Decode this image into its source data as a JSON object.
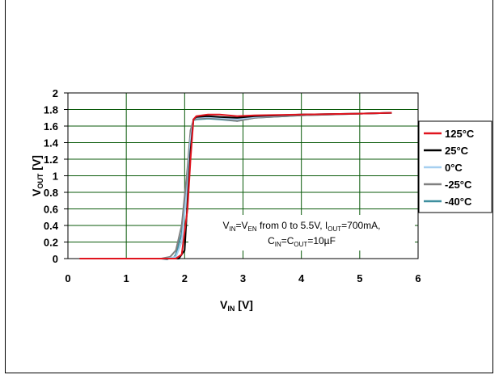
{
  "chart_data": {
    "type": "line",
    "xlabel": {
      "main": "V",
      "sub": "IN",
      "rest": " [V]"
    },
    "ylabel": {
      "main": "V",
      "sub": "OUT",
      "rest": " [V]"
    },
    "xlim": [
      0,
      6
    ],
    "ylim": [
      0,
      2
    ],
    "xticks": [
      "0",
      "1",
      "2",
      "3",
      "4",
      "5",
      "6"
    ],
    "yticks": [
      "0",
      "0.2",
      "0.4",
      "0.6",
      "0.8",
      "1",
      "1.2",
      "1.4",
      "1.6",
      "1.8",
      "2"
    ],
    "grid": true,
    "legend_position": "right",
    "annotation": {
      "line1": [
        {
          "t": "V"
        },
        {
          "t": "IN",
          "sub": true
        },
        {
          "t": "=V"
        },
        {
          "t": "EN",
          "sub": true
        },
        {
          "t": " from 0 to 5.5V, I"
        },
        {
          "t": "OUT",
          "sub": true
        },
        {
          "t": "=700mA,"
        }
      ],
      "line2": [
        {
          "t": "C"
        },
        {
          "t": "IN",
          "sub": true
        },
        {
          "t": "=C"
        },
        {
          "t": "OUT",
          "sub": true
        },
        {
          "t": "=10µF"
        }
      ]
    },
    "series": [
      {
        "name": "125°C",
        "color": "#e0141e",
        "x": [
          0.2,
          1.7,
          1.85,
          1.95,
          2.05,
          2.1,
          2.15,
          2.2,
          2.4,
          2.6,
          2.9,
          3.2,
          4.0,
          5.0,
          5.55
        ],
        "y": [
          0,
          0,
          0,
          0.05,
          0.6,
          1.2,
          1.68,
          1.72,
          1.74,
          1.74,
          1.72,
          1.73,
          1.74,
          1.75,
          1.76
        ]
      },
      {
        "name": "25°C",
        "color": "#000000",
        "x": [
          0.2,
          1.75,
          1.9,
          2.0,
          2.05,
          2.1,
          2.15,
          2.2,
          2.4,
          2.6,
          2.9,
          3.2,
          4.0,
          5.0,
          5.55
        ],
        "y": [
          0,
          0,
          0,
          0.1,
          0.7,
          1.3,
          1.68,
          1.71,
          1.72,
          1.71,
          1.7,
          1.72,
          1.74,
          1.75,
          1.76
        ]
      },
      {
        "name": "0°C",
        "color": "#a6cff0",
        "x": [
          0.2,
          1.7,
          1.85,
          1.95,
          2.05,
          2.1,
          2.15,
          2.2,
          2.4,
          2.6,
          2.9,
          3.2,
          4.0,
          5.0,
          5.55
        ],
        "y": [
          0,
          0,
          0.02,
          0.2,
          0.9,
          1.45,
          1.68,
          1.7,
          1.71,
          1.7,
          1.68,
          1.71,
          1.74,
          1.75,
          1.76
        ]
      },
      {
        "name": "-25°C",
        "color": "#808080",
        "x": [
          0.2,
          1.6,
          1.75,
          1.85,
          1.95,
          2.05,
          2.1,
          2.15,
          2.2,
          2.4,
          2.6,
          2.9,
          3.2,
          4.0,
          5.0,
          5.55
        ],
        "y": [
          0,
          0,
          0.02,
          0.1,
          0.4,
          1.1,
          1.55,
          1.67,
          1.69,
          1.7,
          1.69,
          1.66,
          1.7,
          1.73,
          1.75,
          1.76
        ]
      },
      {
        "name": "-40°C",
        "color": "#3f8f9f",
        "x": [
          0.2,
          1.6,
          1.7,
          1.75,
          1.8,
          1.85,
          1.95,
          2.05,
          2.1,
          2.15,
          2.2,
          2.4,
          2.6,
          2.9,
          3.2,
          4.0,
          5.0,
          5.55
        ],
        "y": [
          0,
          0,
          -0.01,
          0.01,
          0,
          0.05,
          0.3,
          1.0,
          1.5,
          1.67,
          1.68,
          1.69,
          1.68,
          1.66,
          1.7,
          1.73,
          1.75,
          1.76
        ]
      }
    ]
  }
}
